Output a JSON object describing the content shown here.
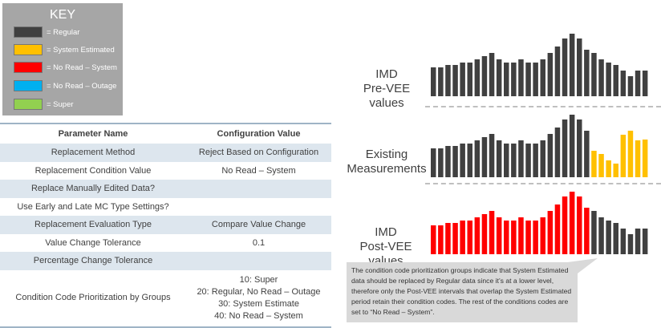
{
  "key": {
    "title": "KEY",
    "items": [
      {
        "label": "= Regular",
        "color": "#404040"
      },
      {
        "label": "= System Estimated",
        "color": "#ffc000"
      },
      {
        "label": "= No Read – System",
        "color": "#ff0000"
      },
      {
        "label": "= No Read – Outage",
        "color": "#00b0f0"
      },
      {
        "label": "= Super",
        "color": "#92d050"
      }
    ]
  },
  "table": {
    "headers": [
      "Parameter Name",
      "Configuration Value"
    ],
    "rows": [
      [
        "Replacement Method",
        "Reject Based on Configuration"
      ],
      [
        "Replacement Condition Value",
        "No Read – System"
      ],
      [
        "Replace Manually Edited Data?",
        ""
      ],
      [
        "Use Early and Late MC Type Settings?",
        ""
      ],
      [
        "Replacement Evaluation Type",
        "Compare Value Change"
      ],
      [
        "Value Change Tolerance",
        "0.1"
      ],
      [
        "Percentage Change Tolerance",
        ""
      ]
    ],
    "last_row": {
      "name": "Condition Code Prioritization by Groups",
      "values": [
        "10: Super",
        "20: Regular, No Read – Outage",
        "30: System Estimate",
        "40: No Read – System"
      ]
    }
  },
  "chart_data": [
    {
      "type": "bar",
      "label_line1": "IMD",
      "label_line2": "Pre-VEE values",
      "values": [
        36,
        36,
        39,
        39,
        42,
        42,
        46,
        50,
        54,
        46,
        42,
        42,
        46,
        42,
        42,
        46,
        54,
        62,
        72,
        78,
        72,
        58,
        54,
        46,
        42,
        39,
        32,
        25,
        32,
        32
      ],
      "colors": [
        "regular",
        "regular",
        "regular",
        "regular",
        "regular",
        "regular",
        "regular",
        "regular",
        "regular",
        "regular",
        "regular",
        "regular",
        "regular",
        "regular",
        "regular",
        "regular",
        "regular",
        "regular",
        "regular",
        "regular",
        "regular",
        "regular",
        "regular",
        "regular",
        "regular",
        "regular",
        "regular",
        "regular",
        "regular",
        "regular"
      ]
    },
    {
      "type": "bar",
      "label_line1": "Existing",
      "label_line2": "Measurements",
      "values": [
        36,
        36,
        39,
        39,
        42,
        42,
        46,
        50,
        54,
        46,
        42,
        42,
        46,
        42,
        42,
        46,
        54,
        62,
        72,
        78,
        72,
        58,
        33,
        29,
        21,
        17,
        53,
        58,
        46,
        47
      ],
      "colors": [
        "regular",
        "regular",
        "regular",
        "regular",
        "regular",
        "regular",
        "regular",
        "regular",
        "regular",
        "regular",
        "regular",
        "regular",
        "regular",
        "regular",
        "regular",
        "regular",
        "regular",
        "regular",
        "regular",
        "regular",
        "regular",
        "regular",
        "estimated",
        "estimated",
        "estimated",
        "estimated",
        "estimated",
        "estimated",
        "estimated",
        "estimated"
      ]
    },
    {
      "type": "bar",
      "label_line1": "IMD",
      "label_line2": "Post-VEE values",
      "values": [
        36,
        36,
        39,
        39,
        42,
        42,
        46,
        50,
        54,
        46,
        42,
        42,
        46,
        42,
        42,
        46,
        54,
        62,
        72,
        78,
        72,
        58,
        54,
        46,
        42,
        39,
        32,
        25,
        32,
        32
      ],
      "colors": [
        "noread",
        "noread",
        "noread",
        "noread",
        "noread",
        "noread",
        "noread",
        "noread",
        "noread",
        "noread",
        "noread",
        "noread",
        "noread",
        "noread",
        "noread",
        "noread",
        "noread",
        "noread",
        "noread",
        "noread",
        "noread",
        "noread",
        "regular",
        "regular",
        "regular",
        "regular",
        "regular",
        "regular",
        "regular",
        "regular"
      ]
    }
  ],
  "palette": {
    "regular": "#404040",
    "estimated": "#ffc000",
    "noread": "#ff0000"
  },
  "callout": "The condition code prioritization groups indicate that System Estimated data should be replaced by Regular data since it’s at a lower level, therefore only the Post-VEE intervals that overlap the System Estimated period retain their condition codes.  The rest of the conditions codes are set to “No Read – System”."
}
